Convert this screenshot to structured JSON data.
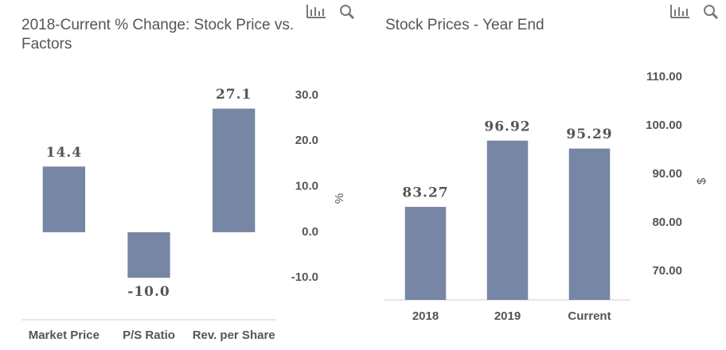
{
  "chart_data": [
    {
      "type": "bar",
      "title": "2018-Current % Change: Stock Price vs. Factors",
      "categories": [
        "Market Price",
        "P/S Ratio",
        "Rev. per Share"
      ],
      "values": [
        14.4,
        -10.0,
        27.1
      ],
      "value_labels": [
        "14.4",
        "-10.0",
        "27.1"
      ],
      "color": "#7686a4",
      "y_label": "%",
      "ylim": [
        -19.2,
        34
      ],
      "yticks": [
        {
          "value": -10,
          "label": "-10.0"
        },
        {
          "value": 0,
          "label": "0.0"
        },
        {
          "value": 10,
          "label": "10.0"
        },
        {
          "value": 20,
          "label": "20.0"
        },
        {
          "value": 30,
          "label": "30.0"
        }
      ]
    },
    {
      "type": "bar",
      "title": "Stock Prices - Year End",
      "categories": [
        "2018",
        "2019",
        "Current"
      ],
      "values": [
        83.27,
        96.92,
        95.29
      ],
      "color": "#7686a4",
      "y_label": "$",
      "ylim": [
        64.1,
        113
      ],
      "yticks": [
        {
          "value": 70,
          "label": "70.00"
        },
        {
          "value": 80,
          "label": "80.00"
        },
        {
          "value": 90,
          "label": "90.00"
        },
        {
          "value": 100,
          "label": "100.00"
        },
        {
          "value": 110,
          "label": "110.00"
        }
      ]
    }
  ]
}
